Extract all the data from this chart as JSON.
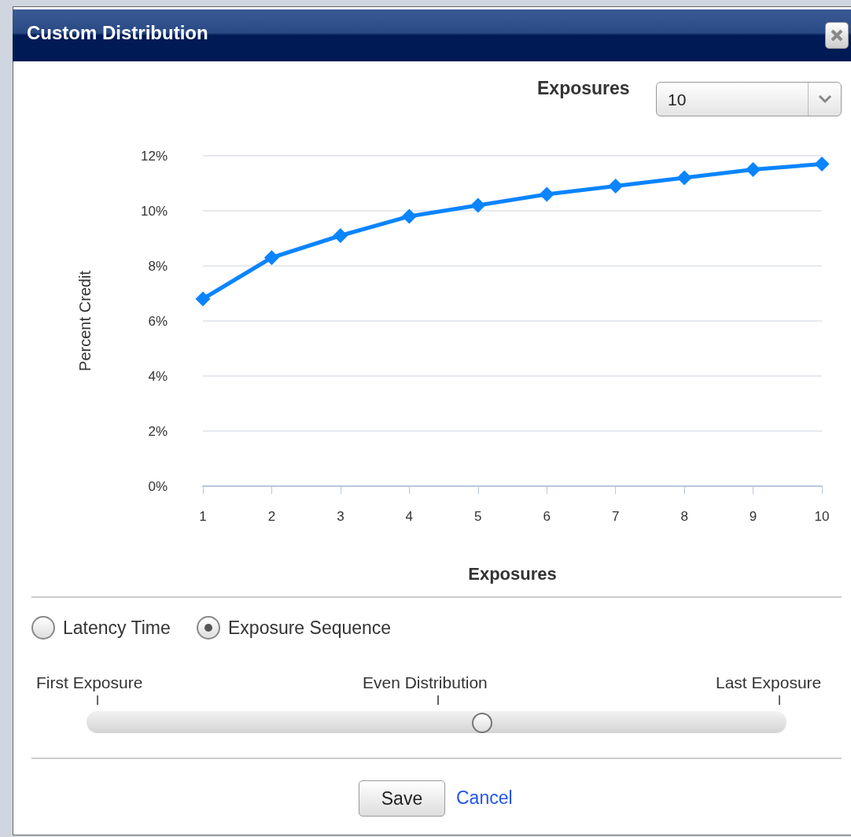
{
  "chart_data": {
    "type": "line",
    "title": "Custom Distribution",
    "xlabel": "Exposures",
    "ylabel": "Percent Credit",
    "categories": [
      "1",
      "2",
      "3",
      "4",
      "5",
      "6",
      "7",
      "8",
      "9",
      "10"
    ],
    "series": [
      {
        "color": "#0a84ff",
        "values": [
          6.8,
          8.3,
          9.1,
          9.8,
          10.2,
          10.6,
          10.9,
          11.2,
          11.5,
          11.7
        ]
      }
    ],
    "ylim": [
      0,
      12
    ],
    "yticks": [
      {
        "value": 0,
        "label": "0%"
      },
      {
        "value": 2,
        "label": "2%"
      },
      {
        "value": 4,
        "label": "4%"
      },
      {
        "value": 6,
        "label": "6%"
      },
      {
        "value": 8,
        "label": "8%"
      },
      {
        "value": 10,
        "label": "10%"
      },
      {
        "value": 12,
        "label": "12%"
      }
    ],
    "grid": "y",
    "marker": "diamond",
    "line_style": "solid",
    "annotations": [
      "Exposures",
      "10",
      "Latency Time",
      "Exposure Sequence",
      "First Exposure",
      "Even Distribution",
      "Last Exposure",
      "Save",
      "Cancel"
    ]
  }
}
